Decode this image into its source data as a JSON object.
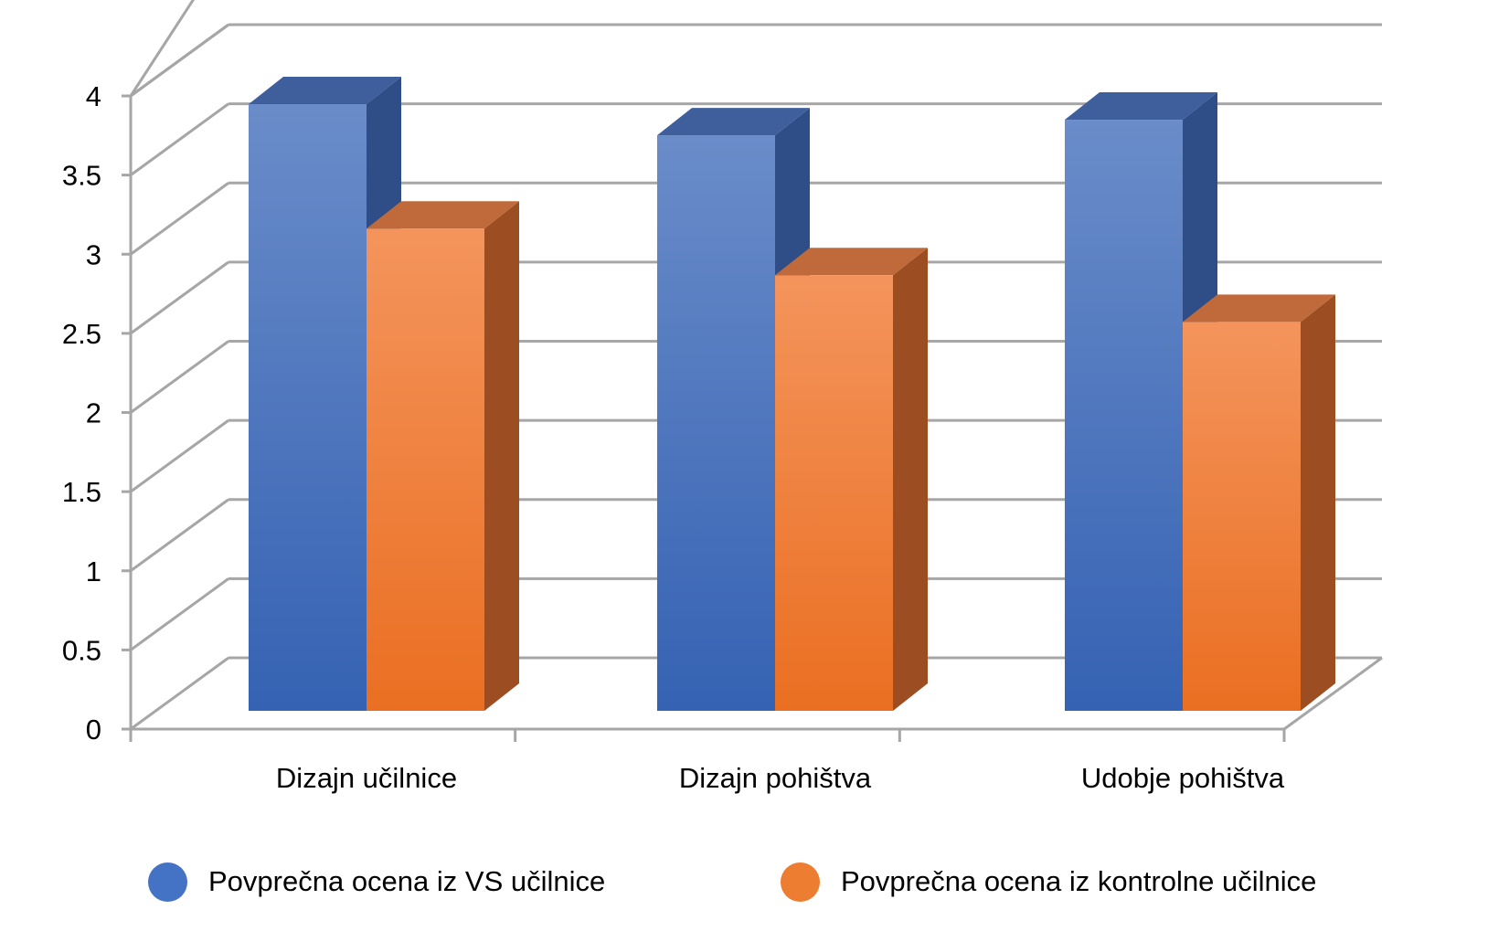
{
  "chart_data": {
    "type": "bar",
    "style": "3d-clustered-column",
    "categories": [
      "Dizajn učilnice",
      "Dizajn pohištva",
      "Udobje pohištva"
    ],
    "series": [
      {
        "name": "Povprečna ocena iz VS učilnice",
        "color": "#4472C4",
        "values": [
          3.9,
          3.7,
          3.8
        ]
      },
      {
        "name": "Povprečna ocena iz kontrolne učilnice",
        "color": "#ED7D31",
        "values": [
          3.1,
          2.8,
          2.5
        ]
      }
    ],
    "yticks": [
      "0",
      "0.5",
      "1",
      "1.5",
      "2",
      "2.5",
      "3",
      "3.5",
      "4"
    ],
    "ylim": [
      0,
      4
    ],
    "grid": true,
    "legend_position": "bottom"
  }
}
